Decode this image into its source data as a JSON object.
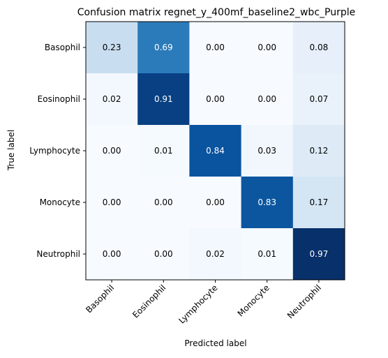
{
  "chart_data": {
    "type": "heatmap",
    "title": "Confusion matrix regnet_y_400mf_baseline2_wbc_Purple",
    "xlabel": "Predicted label",
    "ylabel": "True label",
    "x_categories": [
      "Basophil",
      "Eosinophil",
      "Lymphocyte",
      "Monocyte",
      "Neutrophil"
    ],
    "y_categories": [
      "Basophil",
      "Eosinophil",
      "Lymphocyte",
      "Monocyte",
      "Neutrophil"
    ],
    "values": [
      [
        0.23,
        0.69,
        0.0,
        0.0,
        0.08
      ],
      [
        0.02,
        0.91,
        0.0,
        0.0,
        0.07
      ],
      [
        0.0,
        0.01,
        0.84,
        0.03,
        0.12
      ],
      [
        0.0,
        0.0,
        0.0,
        0.83,
        0.17
      ],
      [
        0.0,
        0.0,
        0.02,
        0.01,
        0.97
      ]
    ],
    "cell_labels": [
      [
        "0.23",
        "0.69",
        "0.00",
        "0.00",
        "0.08"
      ],
      [
        "0.02",
        "0.91",
        "0.00",
        "0.00",
        "0.07"
      ],
      [
        "0.00",
        "0.01",
        "0.84",
        "0.03",
        "0.12"
      ],
      [
        "0.00",
        "0.00",
        "0.00",
        "0.83",
        "0.17"
      ],
      [
        "0.00",
        "0.00",
        "0.02",
        "0.01",
        "0.97"
      ]
    ],
    "value_range": [
      0,
      0.97
    ],
    "colormap": "Blues",
    "grid": false,
    "legend": "none"
  }
}
